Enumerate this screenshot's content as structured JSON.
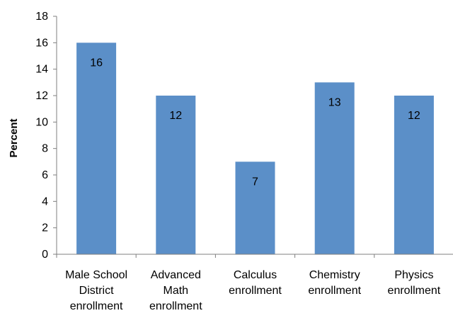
{
  "chart_data": {
    "type": "bar",
    "title": "",
    "xlabel": "",
    "ylabel": "Percent",
    "ylim": [
      0,
      18
    ],
    "yticks": [
      0,
      2,
      4,
      6,
      8,
      10,
      12,
      14,
      16,
      18
    ],
    "grid": false,
    "legend": "none",
    "bar_color": "#5B8FC8",
    "categories": [
      [
        "Male School",
        "District",
        "enrollment"
      ],
      [
        "Advanced",
        "Math",
        "enrollment"
      ],
      [
        "Calculus",
        "enrollment"
      ],
      [
        "Chemistry",
        "enrollment"
      ],
      [
        "Physics",
        "enrollment"
      ]
    ],
    "values": [
      16,
      12,
      7,
      13,
      12
    ],
    "data_labels": [
      "16",
      "12",
      "7",
      "13",
      "12"
    ]
  }
}
